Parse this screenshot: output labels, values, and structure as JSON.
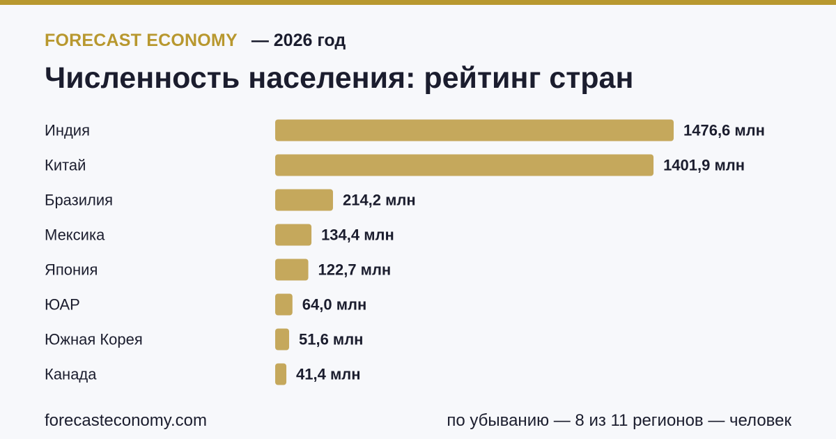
{
  "header": {
    "brand": "FORECAST ECONOMY",
    "year_label": "— 2026 год"
  },
  "colors": {
    "accent": "#b8982f",
    "bar": "#c5a85c",
    "text": "#1b1d2e",
    "background": "#f7f8fb"
  },
  "chart_data": {
    "type": "bar",
    "orientation": "horizontal",
    "title": "Численность населения: рейтинг стран",
    "categories": [
      "Индия",
      "Китай",
      "Бразилия",
      "Мексика",
      "Япония",
      "ЮАР",
      "Южная Корея",
      "Канада"
    ],
    "values": [
      1476.6,
      1401.9,
      214.2,
      134.4,
      122.7,
      64.0,
      51.6,
      41.4
    ],
    "value_labels": [
      "1476,6 млн",
      "1401,9 млн",
      "214,2 млн",
      "134,4 млн",
      "122,7 млн",
      "64,0 млн",
      "51,6 млн",
      "41,4 млн"
    ],
    "grid": false,
    "legend": "none"
  },
  "footer": {
    "source": "forecasteconomy.com",
    "note": "по убыванию — 8 из 11 регионов — человек"
  }
}
